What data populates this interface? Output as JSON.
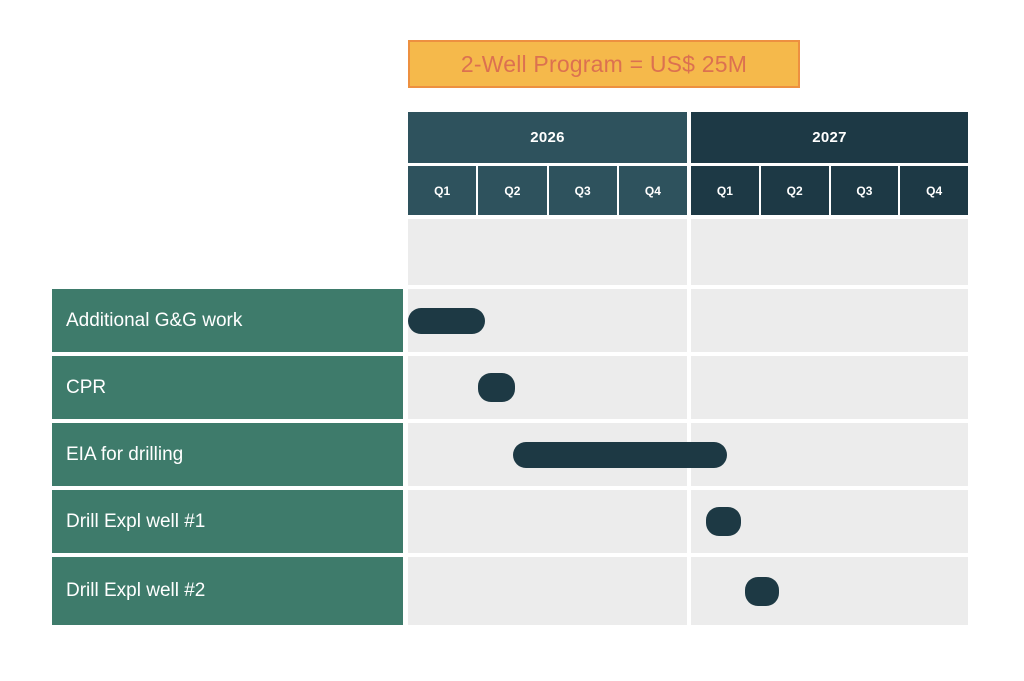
{
  "chart_data": {
    "type": "gantt",
    "title": "2-Well Program = US$ 25M",
    "timeline": {
      "axis_unit": "quarter",
      "total_quarters": 8,
      "years": [
        {
          "label": "2026",
          "quarters": [
            "Q1",
            "Q2",
            "Q3",
            "Q4"
          ]
        },
        {
          "label": "2027",
          "quarters": [
            "Q1",
            "Q2",
            "Q3",
            "Q4"
          ]
        }
      ]
    },
    "tasks": [
      {
        "label": "Additional G&G work",
        "kind": "bar",
        "start_q": 0.0,
        "end_q": 1.1,
        "timing": "Q1 2026"
      },
      {
        "label": "CPR",
        "kind": "milestone",
        "start_q": 1.0,
        "end_q": 1.53,
        "timing": "early Q2 2026"
      },
      {
        "label": "EIA for drilling",
        "kind": "bar",
        "start_q": 1.5,
        "end_q": 4.55,
        "timing": "mid Q2 2026 to mid Q1 2027"
      },
      {
        "label": "Drill Expl well #1",
        "kind": "milestone",
        "start_q": 4.25,
        "end_q": 4.75,
        "timing": "mid Q1 2027"
      },
      {
        "label": "Drill Expl well #2",
        "kind": "milestone",
        "start_q": 4.82,
        "end_q": 5.3,
        "timing": "Q1-Q2 2027 boundary"
      }
    ],
    "legend": "none",
    "grid": "off",
    "colors": {
      "bar": "#1D3944",
      "label_bg": "#3E7B6B",
      "grid_bg": "#ECECEC",
      "year_2026_bg": "#2E525D",
      "year_2027_bg": "#1D3945",
      "header_text": "#FFFFFF",
      "banner_bg": "#F5B94B",
      "banner_border": "#ED9040",
      "banner_text": "#DC7150"
    }
  }
}
